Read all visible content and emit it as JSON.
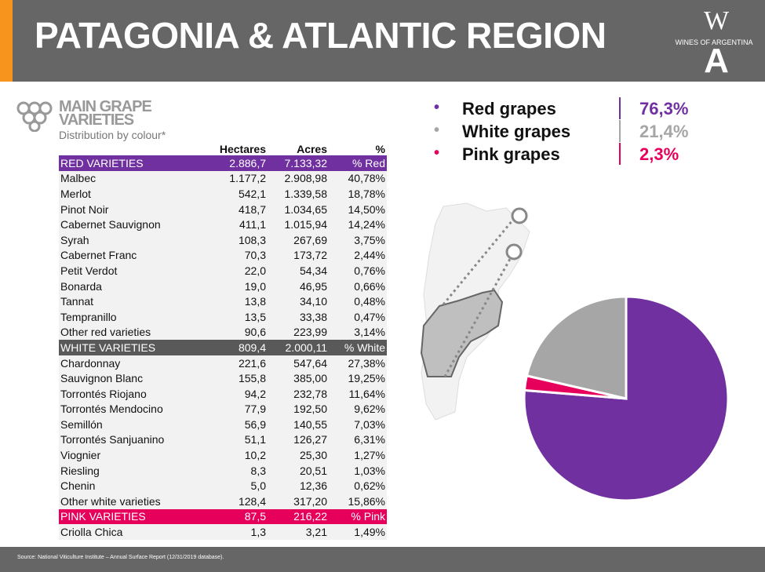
{
  "header": {
    "title": "PATAGONIA & ATLANTIC REGION"
  },
  "logo": {
    "top": "W",
    "text": "WINES OF ARGENTINA",
    "bottom": "A"
  },
  "section": {
    "title": "MAIN GRAPE VARIETIES",
    "subtitle": "Distribution by colour*"
  },
  "table": {
    "columns": [
      "Hectares",
      "Acres",
      "%"
    ],
    "groups": [
      {
        "header": [
          "RED VARIETIES",
          "2.886,7",
          "7.133,32",
          "% Red"
        ],
        "rows": [
          [
            "Malbec",
            "1.177,2",
            "2.908,98",
            "40,78%"
          ],
          [
            "Merlot",
            "542,1",
            "1.339,58",
            "18,78%"
          ],
          [
            "Pinot Noir",
            "418,7",
            "1.034,65",
            "14,50%"
          ],
          [
            "Cabernet Sauvignon",
            "411,1",
            "1.015,94",
            "14,24%"
          ],
          [
            "Syrah",
            "108,3",
            "267,69",
            "3,75%"
          ],
          [
            "Cabernet Franc",
            "70,3",
            "173,72",
            "2,44%"
          ],
          [
            "Petit Verdot",
            "22,0",
            "54,34",
            "0,76%"
          ],
          [
            "Bonarda",
            "19,0",
            "46,95",
            "0,66%"
          ],
          [
            "Tannat",
            "13,8",
            "34,10",
            "0,48%"
          ],
          [
            "Tempranillo",
            "13,5",
            "33,38",
            "0,47%"
          ],
          [
            "Other red varieties",
            "90,6",
            "223,99",
            "3,14%"
          ]
        ]
      },
      {
        "header": [
          "WHITE VARIETIES",
          "809,4",
          "2.000,11",
          "% White"
        ],
        "rows": [
          [
            "Chardonnay",
            "221,6",
            "547,64",
            "27,38%"
          ],
          [
            "Sauvignon Blanc",
            "155,8",
            "385,00",
            "19,25%"
          ],
          [
            "Torrontés Riojano",
            "94,2",
            "232,78",
            "11,64%"
          ],
          [
            "Torrontés Mendocino",
            "77,9",
            "192,50",
            "9,62%"
          ],
          [
            "Semillón",
            "56,9",
            "140,55",
            "7,03%"
          ],
          [
            "Torrontés Sanjuanino",
            "51,1",
            "126,27",
            "6,31%"
          ],
          [
            "Viognier",
            "10,2",
            "25,30",
            "1,27%"
          ],
          [
            "Riesling",
            "8,3",
            "20,51",
            "1,03%"
          ],
          [
            "Chenin",
            "5,0",
            "12,36",
            "0,62%"
          ],
          [
            "Other white varieties",
            "128,4",
            "317,20",
            "15,86%"
          ]
        ]
      },
      {
        "header": [
          "PINK VARIETIES",
          "87,5",
          "216,22",
          "% Pink"
        ],
        "rows": [
          [
            "Criolla Chica",
            "1,3",
            "3,21",
            "1,49%"
          ]
        ]
      }
    ]
  },
  "chart_data": {
    "type": "pie",
    "categories": [
      "Red grapes",
      "White grapes",
      "Pink grapes"
    ],
    "values": [
      76.3,
      21.4,
      2.3
    ],
    "value_labels": [
      "76,3%",
      "21,4%",
      "2,3%"
    ],
    "colors": [
      "#7030a0",
      "#a6a6a6",
      "#e6005c"
    ]
  },
  "footer": {
    "source": "Source: National Viticulture Institute – Annual Surface Report (12/31/2019 database)."
  }
}
